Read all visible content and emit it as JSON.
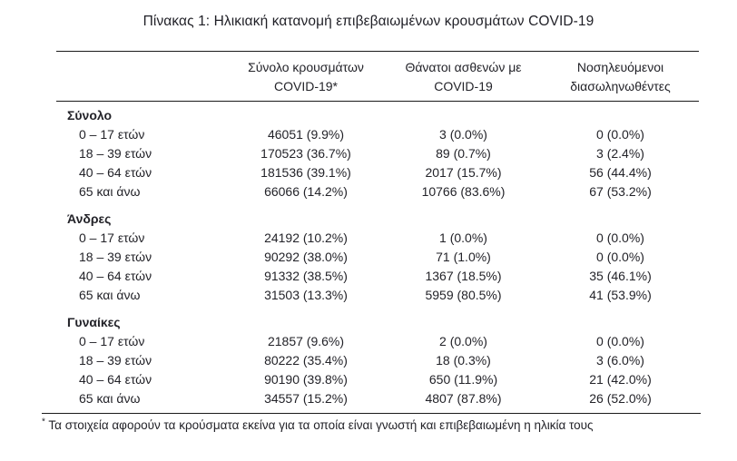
{
  "title": "Πίνακας 1: Ηλικιακή κατανομή επιβεβαιωμένων κρουσμάτων COVID-19",
  "table": {
    "columns": [
      {
        "line1": "Σύνολο κρουσμάτων",
        "line2": "COVID-19*"
      },
      {
        "line1": "Θάνατοι ασθενών με",
        "line2": "COVID-19"
      },
      {
        "line1": "Νοσηλευόμενοι",
        "line2": "διασωληνωθέντες"
      }
    ],
    "sections": [
      {
        "label": "Σύνολο",
        "rows": [
          {
            "age": "0 – 17 ετών",
            "cases": "46051 (9.9%)",
            "deaths": "3 (0.0%)",
            "intubated": "0 (0.0%)"
          },
          {
            "age": "18 – 39 ετών",
            "cases": "170523 (36.7%)",
            "deaths": "89 (0.7%)",
            "intubated": "3 (2.4%)"
          },
          {
            "age": "40 – 64 ετών",
            "cases": "181536 (39.1%)",
            "deaths": "2017 (15.7%)",
            "intubated": "56 (44.4%)"
          },
          {
            "age": "65 και άνω",
            "cases": "66066 (14.2%)",
            "deaths": "10766 (83.6%)",
            "intubated": "67 (53.2%)"
          }
        ]
      },
      {
        "label": "Άνδρες",
        "rows": [
          {
            "age": "0 – 17 ετών",
            "cases": "24192 (10.2%)",
            "deaths": "1 (0.0%)",
            "intubated": "0 (0.0%)"
          },
          {
            "age": "18 – 39 ετών",
            "cases": "90292 (38.0%)",
            "deaths": "71 (1.0%)",
            "intubated": "0 (0.0%)"
          },
          {
            "age": "40 – 64 ετών",
            "cases": "91332 (38.5%)",
            "deaths": "1367 (18.5%)",
            "intubated": "35 (46.1%)"
          },
          {
            "age": "65 και άνω",
            "cases": "31503 (13.3%)",
            "deaths": "5959 (80.5%)",
            "intubated": "41 (53.9%)"
          }
        ]
      },
      {
        "label": "Γυναίκες",
        "rows": [
          {
            "age": "0 – 17 ετών",
            "cases": "21857 (9.6%)",
            "deaths": "2 (0.0%)",
            "intubated": "0 (0.0%)"
          },
          {
            "age": "18 – 39 ετών",
            "cases": "80222 (35.4%)",
            "deaths": "18 (0.3%)",
            "intubated": "3 (6.0%)"
          },
          {
            "age": "40 – 64 ετών",
            "cases": "90190 (39.8%)",
            "deaths": "650 (11.9%)",
            "intubated": "21 (42.0%)"
          },
          {
            "age": "65 και άνω",
            "cases": "34557 (15.2%)",
            "deaths": "4807 (87.8%)",
            "intubated": "26 (52.0%)"
          }
        ]
      }
    ]
  },
  "footnote": {
    "marker": "*",
    "text": "Τα στοιχεία αφορούν τα κρούσματα εκείνα για τα οποία είναι γνωστή και επιβεβαιωμένη η ηλικία τους"
  },
  "colors": {
    "background": "#ffffff",
    "text": "#232329",
    "rule": "#1a1a1a"
  }
}
